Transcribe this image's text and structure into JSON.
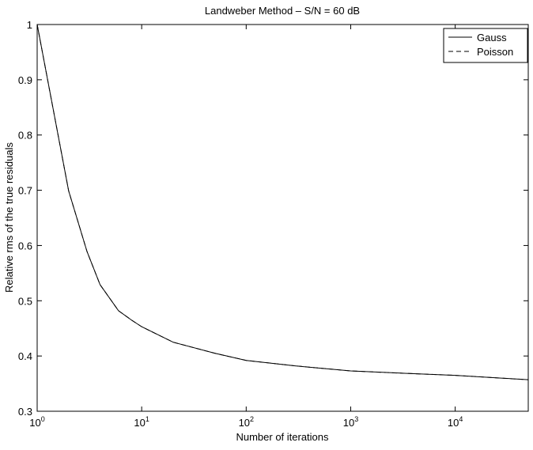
{
  "chart_data": {
    "type": "line",
    "title": "Landweber Method – S/N = 60 dB",
    "x_label": "Number of iterations",
    "y_label": "Relative rms of the true residuals",
    "x": [
      1,
      2,
      3,
      4,
      6,
      8,
      10,
      20,
      50,
      100,
      300,
      1000,
      3000,
      10000,
      50000
    ],
    "series": [
      {
        "name": "Gauss",
        "color": "#000000",
        "dash": "solid",
        "values": [
          1.0,
          0.699,
          0.589,
          0.529,
          0.482,
          0.465,
          0.453,
          0.425,
          0.405,
          0.392,
          0.382,
          0.373,
          0.369,
          0.365,
          0.357
        ]
      },
      {
        "name": "Poisson",
        "color": "#000000",
        "dash": "dashed",
        "values": [
          1.0,
          0.699,
          0.589,
          0.529,
          0.482,
          0.465,
          0.453,
          0.425,
          0.405,
          0.392,
          0.382,
          0.373,
          0.369,
          0.365,
          0.357
        ]
      }
    ],
    "x_log": true,
    "xlim": [
      1,
      50000
    ],
    "xticks": [
      {
        "value": 1,
        "label": "10",
        "exponent": "0"
      },
      {
        "value": 10,
        "label": "10",
        "exponent": "1"
      },
      {
        "value": 100,
        "label": "10",
        "exponent": "2"
      },
      {
        "value": 1000,
        "label": "10",
        "exponent": "3"
      },
      {
        "value": 10000,
        "label": "10",
        "exponent": "4"
      }
    ],
    "ylim": [
      0.3,
      1
    ],
    "yticks": [
      0.3,
      0.4,
      0.5,
      0.6,
      0.7,
      0.8,
      0.9,
      1
    ],
    "grid": false,
    "legend": "upper-right"
  }
}
